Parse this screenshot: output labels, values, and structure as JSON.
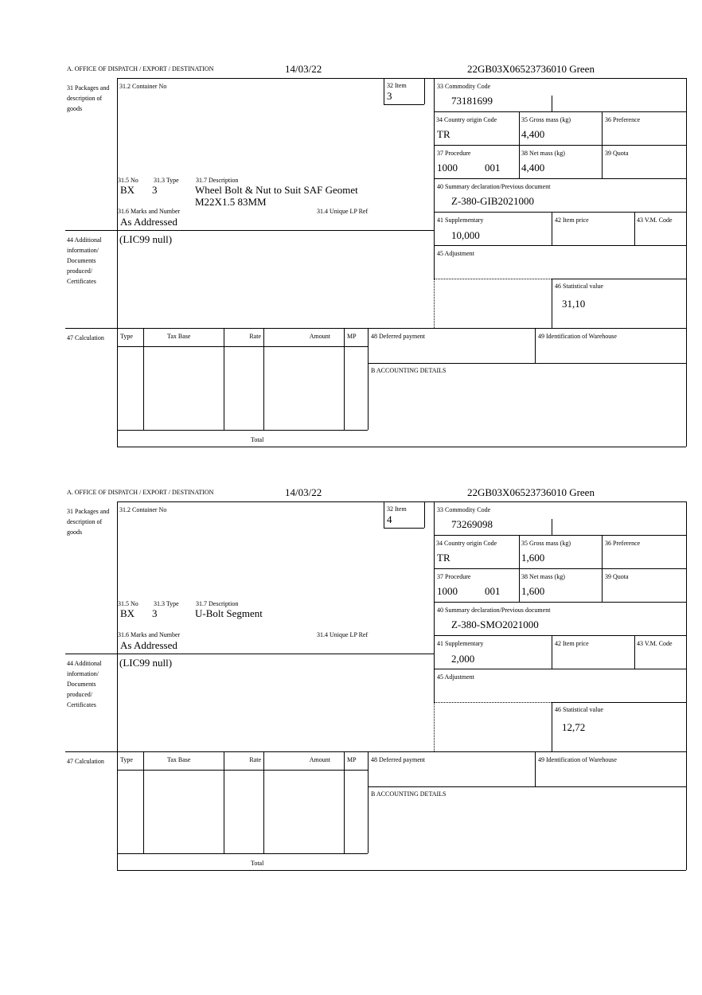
{
  "labels": {
    "office": "A.  OFFICE OF DISPATCH / EXPORT / DESTINATION",
    "packages": "31 Packages and description of goods",
    "container": "31.2 Container No",
    "item": "32 Item",
    "pkg_no": "31.5 No",
    "pkg_type": "31.3 Type",
    "description": "31.7 Description",
    "marks": "31.6 Marks and Number",
    "unique_ref": "31.4 Unique LP Ref",
    "additional": "44 Additional information/ Documents produced/ Certificates",
    "calculation": "47 Calculation",
    "col_type": "Type",
    "col_tax_base": "Tax Base",
    "col_rate": "Rate",
    "col_amount": "Amount",
    "col_mp": "MP",
    "total": "Total",
    "deferred": "48 Deferred payment",
    "warehouse": "49 Identification of Warehouse",
    "accounting": "B ACCOUNTING DETAILS",
    "commodity": "33 Commodity Code",
    "origin": "34 Country origin Code",
    "gross": "35 Gross mass (kg)",
    "preference": "36 Preference",
    "procedure": "37 Procedure",
    "net": "38 Net mass (kg)",
    "quota": "39 Quota",
    "summary": "40 Summary declaration/Previous document",
    "supplementary": "41 Supplementary",
    "item_price": "42 Item price",
    "vm_code": "43 V.M. Code",
    "adjustment": "45 Adjustment",
    "statistical": "46 Statistical value"
  },
  "forms": [
    {
      "date": "14/03/22",
      "reference": "22GB03X06523736010    Green",
      "item": "3",
      "pkg_no": "BX",
      "pkg_type": "3",
      "description": "Wheel Bolt & Nut to Suit SAF Geomet M22X1.5 83MM",
      "marks": "As Addressed",
      "additional": "(LIC99 null)",
      "commodity": "73181699",
      "origin": "TR",
      "gross": "4,400",
      "procedure_a": "1000",
      "procedure_b": "001",
      "net": "4,400",
      "summary": "Z-380-GIB2021000",
      "supplementary": "10,000",
      "statistical": "31,10"
    },
    {
      "date": "14/03/22",
      "reference": "22GB03X06523736010    Green",
      "item": "4",
      "pkg_no": "BX",
      "pkg_type": "3",
      "description": "U-Bolt Segment",
      "marks": "As Addressed",
      "additional": "(LIC99 null)",
      "commodity": "73269098",
      "origin": "TR",
      "gross": "1,600",
      "procedure_a": "1000",
      "procedure_b": "001",
      "net": "1,600",
      "summary": "Z-380-SMO2021000",
      "supplementary": "2,000",
      "statistical": "12,72"
    }
  ]
}
